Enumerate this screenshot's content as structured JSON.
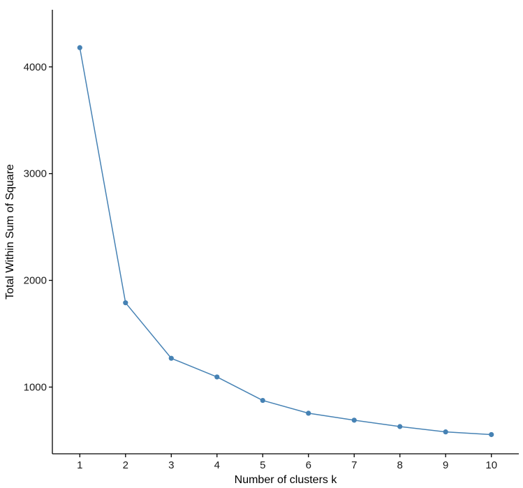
{
  "chart_data": {
    "type": "line",
    "title": "",
    "xlabel": "Number of clusters k",
    "ylabel": "Total Within Sum of Square",
    "categories": [
      "1",
      "2",
      "3",
      "4",
      "5",
      "6",
      "7",
      "8",
      "9",
      "10"
    ],
    "x": [
      1,
      2,
      3,
      4,
      5,
      6,
      7,
      8,
      9,
      10
    ],
    "values": [
      4180,
      1790,
      1270,
      1095,
      875,
      755,
      690,
      630,
      580,
      555
    ],
    "y_ticks": [
      1000,
      2000,
      3000,
      4000
    ],
    "y_tick_labels": [
      "1000",
      "2000",
      "3000",
      "4000"
    ],
    "xlim": [
      0.4,
      10.6
    ],
    "ylim": [
      375,
      4535
    ],
    "grid": false,
    "legend": "none",
    "colors": {
      "series": "#4682b4",
      "axis": "#000000",
      "text": "#1a1a1a"
    }
  }
}
